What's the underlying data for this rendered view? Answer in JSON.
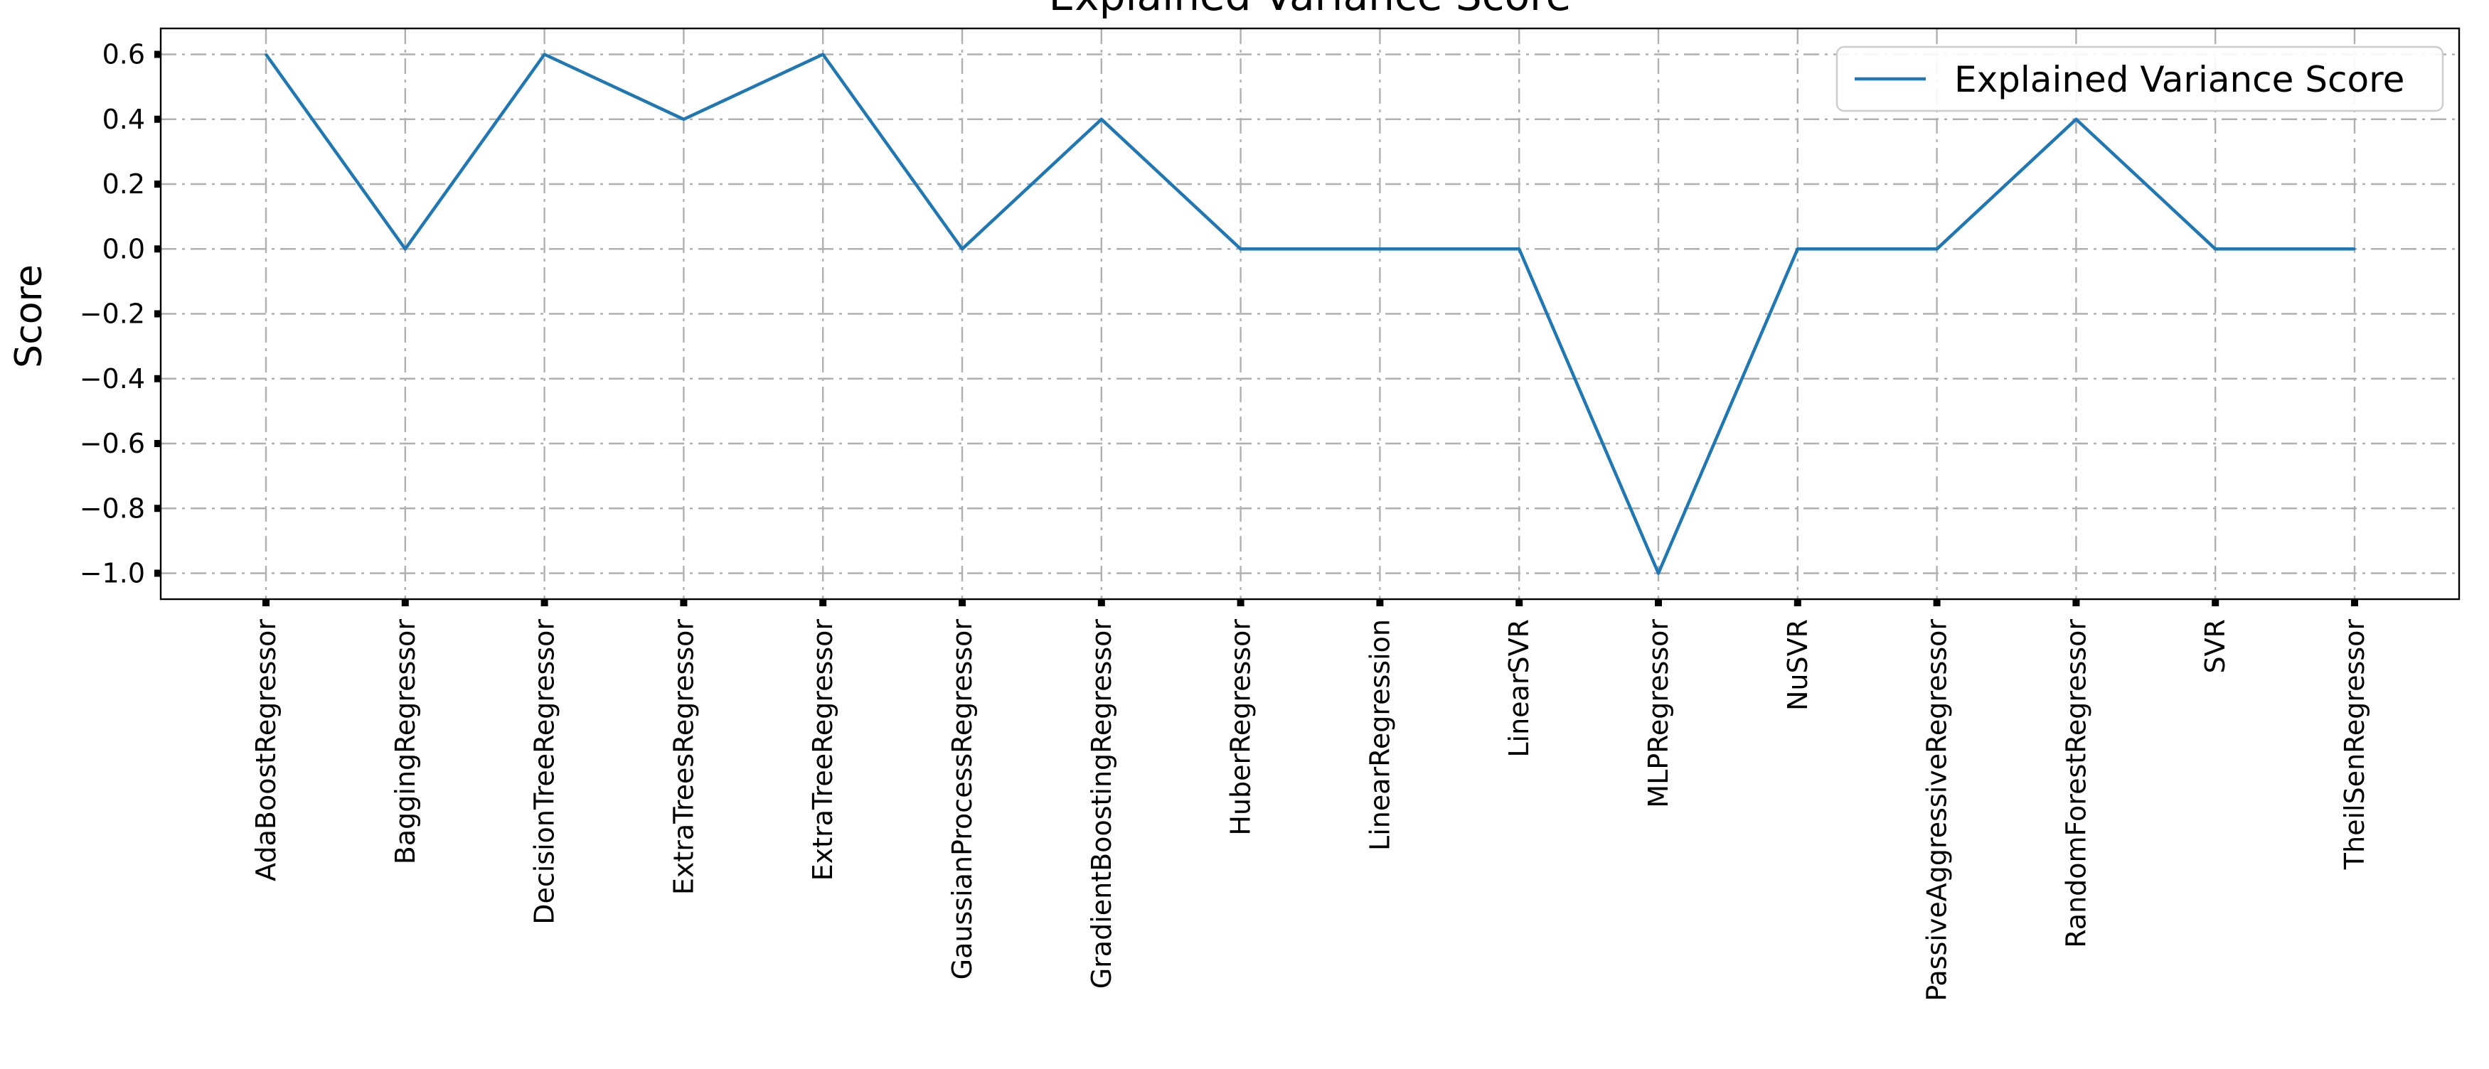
{
  "chart_data": {
    "type": "line",
    "title": "Explained Variance Score",
    "xlabel": "",
    "ylabel": "Score",
    "categories": [
      "AdaBoostRegressor",
      "BaggingRegressor",
      "DecisionTreeRegressor",
      "ExtraTreesRegressor",
      "ExtraTreeRegressor",
      "GaussianProcessRegressor",
      "GradientBoostingRegressor",
      "HuberRegressor",
      "LinearRegression",
      "LinearSVR",
      "MLPRegressor",
      "NuSVR",
      "PassiveAggressiveRegressor",
      "RandomForestRegressor",
      "SVR",
      "TheilSenRegressor"
    ],
    "series": [
      {
        "name": "Explained Variance Score",
        "values": [
          0.6,
          0.0,
          0.6,
          0.4,
          0.6,
          0.0,
          0.4,
          0.0,
          0.0,
          0.0,
          -1.0,
          0.0,
          0.0,
          0.4,
          0.0,
          0.0
        ]
      }
    ],
    "ylim": [
      -1.08,
      0.68
    ],
    "yticks": [
      0.6,
      0.4,
      0.2,
      0.0,
      -0.2,
      -0.4,
      -0.6,
      -0.8,
      -1.0
    ],
    "ytick_labels": [
      "0.6",
      "0.4",
      "0.2",
      "0.0",
      "−0.2",
      "−0.4",
      "−0.6",
      "−0.8",
      "−1.0"
    ],
    "grid": true,
    "legend_position": "top-right",
    "colors": {
      "line": "#1f77b4",
      "grid": "#b0b0b0",
      "axes": "#000000",
      "legend_border": "#cccccc"
    }
  }
}
